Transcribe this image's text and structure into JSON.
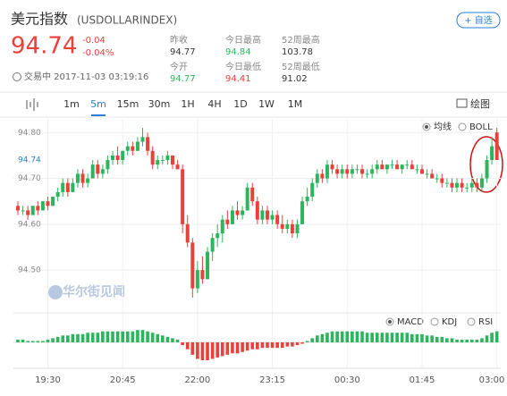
{
  "header": {
    "title": "美元指数",
    "code": "(USDOLLARINDEX)",
    "price": "94.74",
    "change": "-0.04",
    "change_pct": "-0.04%",
    "status": "交易中 2017-11-03 03:19:16",
    "add_button": "+ 自选"
  },
  "stats": [
    {
      "label": "昨收",
      "value": "94.77"
    },
    {
      "label": "今日最高",
      "value": "94.84"
    },
    {
      "label": "52周最高",
      "value": "103.78"
    },
    {
      "label": "今开",
      "value": "94.77"
    },
    {
      "label": "今日最低",
      "value": "94.41"
    },
    {
      "label": "52周最低",
      "value": "91.02"
    }
  ],
  "toolbar": {
    "intervals": [
      "1m",
      "5m",
      "15m",
      "30m",
      "1H",
      "4H",
      "1D",
      "1W",
      "1M"
    ],
    "draw": "绘图"
  },
  "indicators": {
    "overlay": [
      "均线",
      "BOLL"
    ],
    "sub": [
      "MACD",
      "KDJ",
      "RSI"
    ]
  },
  "watermark": "华尔街见闻",
  "chart_data": {
    "type": "candlestick",
    "up_color": "#2db55d",
    "down_color": "#e8413c",
    "ylim": [
      94.43,
      94.82
    ],
    "yticks": [
      {
        "value": 94.8,
        "label": "94.80"
      },
      {
        "value": 94.7,
        "label": "94.70"
      },
      {
        "value": 94.6,
        "label": "94.60"
      },
      {
        "value": 94.5,
        "label": "94.50"
      }
    ],
    "grid": true,
    "categories": [
      null,
      null,
      null,
      null,
      null,
      null,
      "19:30",
      null,
      null,
      null,
      null,
      null,
      null,
      null,
      null,
      null,
      null,
      null,
      null,
      null,
      null,
      "20:45",
      null,
      null,
      null,
      null,
      null,
      null,
      null,
      null,
      null,
      null,
      null,
      null,
      null,
      null,
      "22:00",
      null,
      null,
      null,
      null,
      null,
      null,
      null,
      null,
      null,
      null,
      null,
      null,
      null,
      null,
      "23:15",
      null,
      null,
      null,
      null,
      null,
      null,
      null,
      null,
      null,
      null,
      null,
      null,
      null,
      null,
      "00:30",
      null,
      null,
      null,
      null,
      null,
      null,
      null,
      null,
      null,
      null,
      null,
      null,
      null,
      null,
      "01:45",
      null,
      null,
      null,
      null,
      null,
      null,
      null,
      null,
      null,
      null,
      null,
      null,
      null,
      null,
      "03:00"
    ],
    "candles": [
      [
        94.64,
        94.65,
        94.62,
        94.63
      ],
      [
        94.63,
        94.64,
        94.62,
        94.63
      ],
      [
        94.63,
        94.64,
        94.61,
        94.62
      ],
      [
        94.62,
        94.64,
        94.62,
        94.64
      ],
      [
        94.64,
        94.65,
        94.62,
        94.63
      ],
      [
        94.63,
        94.65,
        94.63,
        94.65
      ],
      [
        94.65,
        94.66,
        94.63,
        94.64
      ],
      [
        94.64,
        94.66,
        94.64,
        94.66
      ],
      [
        94.66,
        94.68,
        94.65,
        94.67
      ],
      [
        94.67,
        94.7,
        94.66,
        94.69
      ],
      [
        94.69,
        94.7,
        94.66,
        94.67
      ],
      [
        94.67,
        94.7,
        94.67,
        94.69
      ],
      [
        94.69,
        94.72,
        94.68,
        94.71
      ],
      [
        94.71,
        94.72,
        94.68,
        94.69
      ],
      [
        94.69,
        94.71,
        94.68,
        94.7
      ],
      [
        94.7,
        94.74,
        94.7,
        94.73
      ],
      [
        94.73,
        94.74,
        94.7,
        94.71
      ],
      [
        94.71,
        94.73,
        94.7,
        94.72
      ],
      [
        94.72,
        94.75,
        94.71,
        94.74
      ],
      [
        94.74,
        94.76,
        94.73,
        94.75
      ],
      [
        94.75,
        94.77,
        94.73,
        94.74
      ],
      [
        94.74,
        94.76,
        94.73,
        94.76
      ],
      [
        94.76,
        94.78,
        94.75,
        94.77
      ],
      [
        94.77,
        94.78,
        94.75,
        94.76
      ],
      [
        94.76,
        94.79,
        94.76,
        94.78
      ],
      [
        94.78,
        94.81,
        94.77,
        94.79
      ],
      [
        94.79,
        94.8,
        94.75,
        94.76
      ],
      [
        94.76,
        94.77,
        94.72,
        94.73
      ],
      [
        94.73,
        94.75,
        94.72,
        94.74
      ],
      [
        94.74,
        94.75,
        94.73,
        94.74
      ],
      [
        94.74,
        94.76,
        94.73,
        94.75
      ],
      [
        94.75,
        94.75,
        94.72,
        94.73
      ],
      [
        94.73,
        94.74,
        94.72,
        94.72
      ],
      [
        94.72,
        94.73,
        94.58,
        94.6
      ],
      [
        94.6,
        94.62,
        94.55,
        94.56
      ],
      [
        94.56,
        94.57,
        94.44,
        94.46
      ],
      [
        94.46,
        94.52,
        94.45,
        94.5
      ],
      [
        94.5,
        94.53,
        94.47,
        94.48
      ],
      [
        94.48,
        94.55,
        94.48,
        94.54
      ],
      [
        94.54,
        94.58,
        94.52,
        94.57
      ],
      [
        94.57,
        94.6,
        94.55,
        94.58
      ],
      [
        94.58,
        94.62,
        94.56,
        94.61
      ],
      [
        94.61,
        94.63,
        94.59,
        94.6
      ],
      [
        94.6,
        94.64,
        94.6,
        94.63
      ],
      [
        94.63,
        94.65,
        94.61,
        94.62
      ],
      [
        94.62,
        94.64,
        94.61,
        94.63
      ],
      [
        94.63,
        94.69,
        94.63,
        94.68
      ],
      [
        94.68,
        94.69,
        94.64,
        94.65
      ],
      [
        94.65,
        94.66,
        94.6,
        94.61
      ],
      [
        94.61,
        94.64,
        94.6,
        94.63
      ],
      [
        94.63,
        94.64,
        94.6,
        94.61
      ],
      [
        94.61,
        94.63,
        94.6,
        94.62
      ],
      [
        94.62,
        94.63,
        94.59,
        94.6
      ],
      [
        94.6,
        94.62,
        94.58,
        94.59
      ],
      [
        94.59,
        94.61,
        94.58,
        94.6
      ],
      [
        94.6,
        94.61,
        94.57,
        94.58
      ],
      [
        94.58,
        94.61,
        94.57,
        94.6
      ],
      [
        94.6,
        94.66,
        94.6,
        94.65
      ],
      [
        94.65,
        94.68,
        94.64,
        94.66
      ],
      [
        94.66,
        94.7,
        94.65,
        94.69
      ],
      [
        94.69,
        94.72,
        94.68,
        94.71
      ],
      [
        94.71,
        94.72,
        94.69,
        94.7
      ],
      [
        94.7,
        94.74,
        94.69,
        94.73
      ],
      [
        94.73,
        94.74,
        94.71,
        94.72
      ],
      [
        94.72,
        94.73,
        94.7,
        94.71
      ],
      [
        94.71,
        94.73,
        94.7,
        94.72
      ],
      [
        94.72,
        94.73,
        94.7,
        94.71
      ],
      [
        94.71,
        94.73,
        94.7,
        94.72
      ],
      [
        94.72,
        94.73,
        94.71,
        94.72
      ],
      [
        94.72,
        94.73,
        94.7,
        94.71
      ],
      [
        94.71,
        94.72,
        94.7,
        94.71
      ],
      [
        94.71,
        94.73,
        94.7,
        94.72
      ],
      [
        94.72,
        94.74,
        94.71,
        94.73
      ],
      [
        94.73,
        94.74,
        94.72,
        94.72
      ],
      [
        94.72,
        94.73,
        94.71,
        94.73
      ],
      [
        94.73,
        94.74,
        94.72,
        94.73
      ],
      [
        94.73,
        94.74,
        94.72,
        94.72
      ],
      [
        94.72,
        94.73,
        94.71,
        94.73
      ],
      [
        94.73,
        94.74,
        94.72,
        94.73
      ],
      [
        94.73,
        94.74,
        94.72,
        94.72
      ],
      [
        94.72,
        94.73,
        94.71,
        94.72
      ],
      [
        94.72,
        94.73,
        94.71,
        94.71
      ],
      [
        94.71,
        94.72,
        94.7,
        94.71
      ],
      [
        94.71,
        94.72,
        94.7,
        94.7
      ],
      [
        94.7,
        94.71,
        94.69,
        94.7
      ],
      [
        94.7,
        94.71,
        94.68,
        94.69
      ],
      [
        94.69,
        94.7,
        94.68,
        94.69
      ],
      [
        94.69,
        94.7,
        94.67,
        94.68
      ],
      [
        94.68,
        94.7,
        94.67,
        94.69
      ],
      [
        94.69,
        94.7,
        94.67,
        94.68
      ],
      [
        94.68,
        94.69,
        94.67,
        94.68
      ],
      [
        94.68,
        94.7,
        94.67,
        94.69
      ],
      [
        94.69,
        94.7,
        94.67,
        94.68
      ],
      [
        94.68,
        94.71,
        94.67,
        94.7
      ],
      [
        94.7,
        94.75,
        94.69,
        94.74
      ],
      [
        94.74,
        94.79,
        94.73,
        94.77
      ],
      [
        94.8,
        94.81,
        94.74,
        94.74
      ]
    ],
    "macd": [
      2,
      2,
      1,
      1,
      1,
      1,
      2,
      3,
      4,
      5,
      5,
      6,
      6,
      6,
      7,
      7,
      7,
      8,
      8,
      8,
      8,
      8,
      8,
      8,
      9,
      9,
      8,
      7,
      6,
      5,
      4,
      3,
      2,
      -2,
      -5,
      -9,
      -12,
      -13,
      -13,
      -12,
      -11,
      -10,
      -9,
      -8,
      -8,
      -7,
      -6,
      -5,
      -5,
      -4,
      -4,
      -4,
      -4,
      -4,
      -3,
      -3,
      -2,
      -1,
      1,
      3,
      5,
      6,
      7,
      8,
      8,
      8,
      8,
      8,
      8,
      8,
      7,
      7,
      7,
      7,
      7,
      7,
      7,
      7,
      7,
      6,
      6,
      6,
      5,
      5,
      4,
      4,
      3,
      3,
      2,
      2,
      2,
      2,
      2,
      3,
      5,
      7,
      8
    ]
  }
}
